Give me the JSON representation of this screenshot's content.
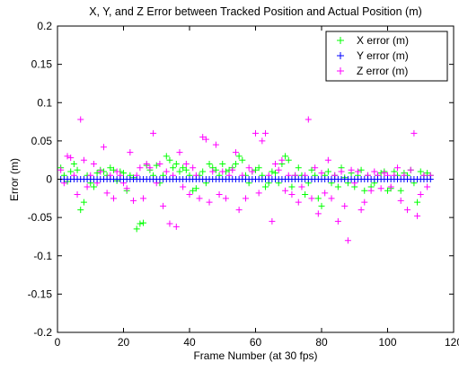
{
  "chart_data": {
    "type": "scatter",
    "title": "X, Y, and Z Error between Tracked Position and Actual Position (m)",
    "xlabel": "Frame Number (at 30 fps)",
    "ylabel": "Error (m)",
    "xlim": [
      0,
      120
    ],
    "ylim": [
      -0.2,
      0.2
    ],
    "xticks": [
      0,
      20,
      40,
      60,
      80,
      100,
      120
    ],
    "yticks": [
      0.2,
      0.15,
      0.1,
      0.05,
      0,
      -0.05,
      -0.1,
      -0.15,
      -0.2
    ],
    "xtick_labels": [
      "0",
      "20",
      "40",
      "60",
      "80",
      "100",
      "120"
    ],
    "ytick_labels": [
      "0.2",
      "0.15",
      "0.1",
      "0.05",
      "0",
      "-0.05",
      "-0.1",
      "-0.15",
      "-0.2"
    ],
    "grid": false,
    "legend_position": "top-right",
    "marker": "+",
    "series": [
      {
        "name": "X error (m)",
        "color": "#00ff00",
        "x": [
          1,
          2,
          3,
          4,
          5,
          6,
          7,
          8,
          9,
          10,
          11,
          12,
          13,
          14,
          15,
          16,
          17,
          18,
          19,
          20,
          21,
          22,
          23,
          24,
          25,
          26,
          27,
          28,
          29,
          30,
          31,
          32,
          33,
          34,
          35,
          36,
          37,
          38,
          39,
          40,
          41,
          42,
          43,
          44,
          45,
          46,
          47,
          48,
          49,
          50,
          51,
          52,
          53,
          54,
          55,
          56,
          57,
          58,
          59,
          60,
          61,
          62,
          63,
          64,
          65,
          66,
          67,
          68,
          69,
          70,
          71,
          72,
          73,
          74,
          75,
          76,
          77,
          78,
          79,
          80,
          81,
          82,
          83,
          84,
          85,
          86,
          87,
          88,
          89,
          90,
          91,
          92,
          93,
          94,
          95,
          96,
          97,
          98,
          99,
          100,
          101,
          102,
          103,
          104,
          105,
          106,
          107,
          108,
          109,
          110,
          111,
          112,
          113
        ],
        "y": [
          0.015,
          0.005,
          -0.003,
          0.01,
          0.02,
          0.012,
          -0.04,
          -0.03,
          0.005,
          -0.005,
          -0.01,
          0.008,
          0.012,
          0.01,
          0.005,
          0.015,
          0.012,
          -0.002,
          0.01,
          0.008,
          -0.015,
          0.005,
          0.002,
          -0.065,
          -0.058,
          -0.057,
          0.018,
          0.012,
          0.005,
          0.018,
          -0.005,
          0.005,
          0.03,
          0.025,
          0.015,
          0.02,
          0.01,
          0.015,
          0.012,
          0.005,
          -0.015,
          -0.012,
          0.005,
          0.01,
          -0.005,
          0.02,
          0.015,
          0.012,
          0.005,
          0.02,
          0.01,
          0.012,
          0.015,
          0.02,
          0.03,
          0.025,
          0.005,
          -0.005,
          0.01,
          0.012,
          0.015,
          0.005,
          -0.01,
          -0.005,
          0.01,
          0.008,
          -0.005,
          0.02,
          0.03,
          0.025,
          -0.01,
          0.005,
          0.015,
          0.005,
          -0.02,
          -0.005,
          0.012,
          0.005,
          -0.025,
          -0.035,
          0.005,
          0.01,
          -0.005,
          0.005,
          -0.01,
          0.015,
          0.002,
          -0.005,
          0.008,
          -0.01,
          0.005,
          0.012,
          -0.015,
          0.005,
          -0.01,
          -0.005,
          0.005,
          0.008,
          0.01,
          -0.015,
          -0.012,
          0.01,
          0.005,
          -0.015,
          0.008,
          0.005,
          0.012,
          -0.005,
          -0.03,
          0.01,
          0.005,
          0.008,
          0.005
        ]
      },
      {
        "name": "Y error (m)",
        "color": "#0000ff",
        "x": [
          1,
          2,
          3,
          4,
          5,
          6,
          7,
          8,
          9,
          10,
          11,
          12,
          13,
          14,
          15,
          16,
          17,
          18,
          19,
          20,
          21,
          22,
          23,
          24,
          25,
          26,
          27,
          28,
          29,
          30,
          31,
          32,
          33,
          34,
          35,
          36,
          37,
          38,
          39,
          40,
          41,
          42,
          43,
          44,
          45,
          46,
          47,
          48,
          49,
          50,
          51,
          52,
          53,
          54,
          55,
          56,
          57,
          58,
          59,
          60,
          61,
          62,
          63,
          64,
          65,
          66,
          67,
          68,
          69,
          70,
          71,
          72,
          73,
          74,
          75,
          76,
          77,
          78,
          79,
          80,
          81,
          82,
          83,
          84,
          85,
          86,
          87,
          88,
          89,
          90,
          91,
          92,
          93,
          94,
          95,
          96,
          97,
          98,
          99,
          100,
          101,
          102,
          103,
          104,
          105,
          106,
          107,
          108,
          109,
          110,
          111,
          112,
          113
        ],
        "y": [
          0,
          0,
          0,
          0,
          0,
          0,
          0,
          0,
          0,
          0,
          0,
          0,
          0,
          0,
          0,
          0,
          0,
          0,
          0,
          0,
          0,
          0,
          0,
          0,
          0,
          0,
          0,
          0,
          0,
          0,
          0,
          0,
          0,
          0,
          0,
          0,
          0,
          0,
          0,
          0,
          0,
          0,
          0,
          0,
          0,
          0,
          0,
          0,
          0,
          0,
          0,
          0,
          0,
          0,
          0,
          0,
          0,
          0,
          0,
          0,
          0,
          0,
          0,
          0,
          0,
          0,
          0,
          0,
          0,
          0,
          0,
          0,
          0,
          0,
          0,
          0,
          0,
          0,
          0,
          0,
          0,
          0,
          0,
          0,
          0,
          0,
          0,
          0,
          0,
          0,
          0,
          0,
          0,
          0,
          0,
          0,
          0,
          0,
          0,
          0,
          0,
          0,
          0,
          0,
          0,
          0,
          0,
          0,
          0,
          0,
          0,
          0,
          0
        ]
      },
      {
        "name": "Z error (m)",
        "color": "#ff00ff",
        "x": [
          1,
          2,
          3,
          4,
          5,
          6,
          7,
          8,
          9,
          10,
          11,
          12,
          13,
          14,
          15,
          16,
          17,
          18,
          19,
          20,
          21,
          22,
          23,
          24,
          25,
          26,
          27,
          28,
          29,
          30,
          31,
          32,
          33,
          34,
          35,
          36,
          37,
          38,
          39,
          40,
          41,
          42,
          43,
          44,
          45,
          46,
          47,
          48,
          49,
          50,
          51,
          52,
          53,
          54,
          55,
          56,
          57,
          58,
          59,
          60,
          61,
          62,
          63,
          64,
          65,
          66,
          67,
          68,
          69,
          70,
          71,
          72,
          73,
          74,
          75,
          76,
          77,
          78,
          79,
          80,
          81,
          82,
          83,
          84,
          85,
          86,
          87,
          88,
          89,
          90,
          91,
          92,
          93,
          94,
          95,
          96,
          97,
          98,
          99,
          100,
          101,
          102,
          103,
          104,
          105,
          106,
          107,
          108,
          109,
          110,
          111,
          112,
          113
        ],
        "y": [
          0.012,
          -0.005,
          0.03,
          0.028,
          0.005,
          -0.02,
          0.078,
          0.025,
          -0.01,
          0.005,
          0.02,
          -0.005,
          0.01,
          0.042,
          -0.018,
          0.005,
          -0.025,
          0.01,
          0.005,
          -0.005,
          -0.012,
          0.035,
          -0.028,
          0.005,
          0.015,
          -0.025,
          0.02,
          0.015,
          0.06,
          -0.005,
          0.02,
          -0.035,
          0.01,
          -0.058,
          0.005,
          -0.062,
          0.035,
          -0.01,
          0.02,
          -0.02,
          0.015,
          0.005,
          -0.025,
          0.055,
          0.052,
          -0.03,
          0.01,
          0.045,
          -0.02,
          0.01,
          -0.025,
          0.005,
          0.012,
          0.035,
          -0.04,
          0.005,
          -0.025,
          0.015,
          0.01,
          0.06,
          -0.018,
          0.05,
          0.06,
          0.005,
          -0.055,
          0.02,
          0.012,
          0.025,
          -0.015,
          0.005,
          -0.02,
          0.005,
          -0.03,
          -0.01,
          0.005,
          0.078,
          -0.025,
          0.015,
          -0.045,
          0.008,
          -0.018,
          0.025,
          -0.025,
          0.005,
          -0.055,
          0.01,
          -0.035,
          -0.08,
          0.012,
          -0.005,
          0.01,
          -0.04,
          -0.03,
          0.005,
          -0.015,
          0.01,
          0.005,
          -0.012,
          0.008,
          0.005,
          -0.01,
          0.005,
          0.015,
          -0.028,
          0.005,
          -0.04,
          0.012,
          0.06,
          -0.048,
          -0.02,
          0.005,
          -0.01,
          0.005
        ]
      }
    ]
  }
}
